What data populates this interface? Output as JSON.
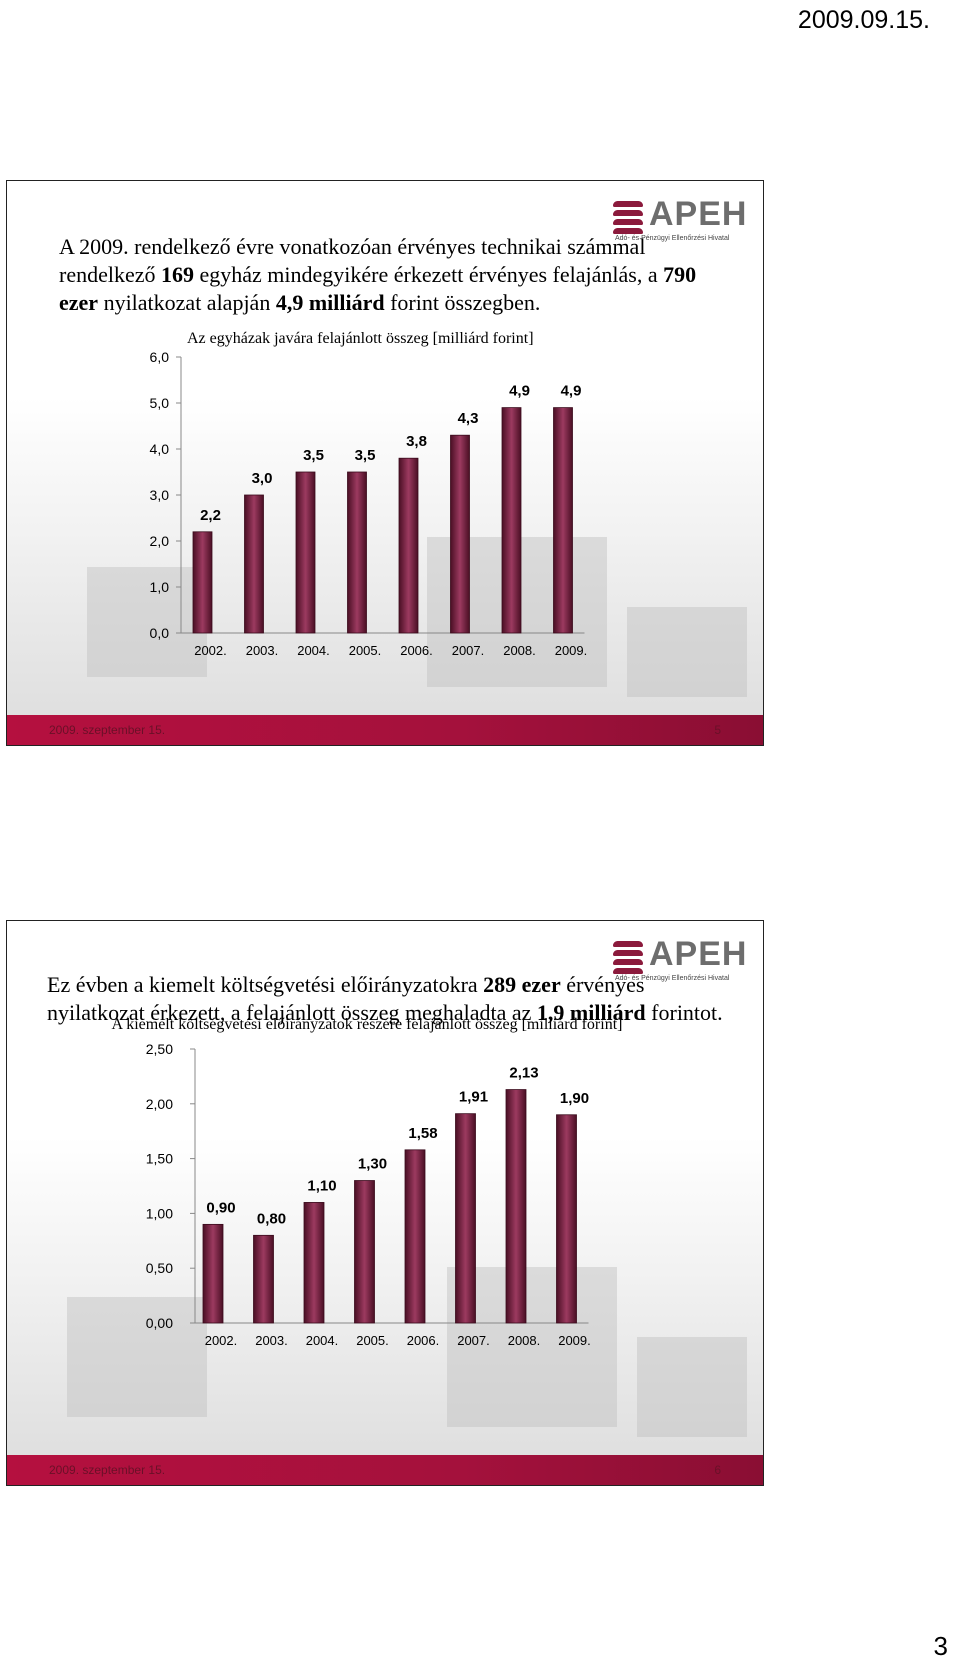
{
  "page": {
    "header_date": "2009.09.15.",
    "page_number": "3"
  },
  "slides": [
    {
      "text_parts": [
        {
          "t": "A 2009. rendelkező évre vonatkozóan érvényes technikai számmal rendelkező ",
          "b": false
        },
        {
          "t": "169",
          "b": true
        },
        {
          "t": " egyház mindegyikére érkezett érvényes felajánlás, a ",
          "b": false
        },
        {
          "t": "790 ezer",
          "b": true
        },
        {
          "t": " nyilatkozat alapján ",
          "b": false
        },
        {
          "t": "4,9 milliárd",
          "b": true
        },
        {
          "t": " forint összegben.",
          "b": false
        }
      ],
      "footer_date": "2009. szeptember 15.",
      "footer_num": "5"
    },
    {
      "text_parts": [
        {
          "t": "Ez évben a kiemelt költségvetési előirányzatokra ",
          "b": false
        },
        {
          "t": "289 ezer",
          "b": true
        },
        {
          "t": " érvényes nyilatkozat érkezett, a felajánlott összeg meghaladta az ",
          "b": false
        },
        {
          "t": "1,9 milliárd",
          "b": true
        },
        {
          "t": " forintot.",
          "b": false
        }
      ],
      "footer_date": "2009. szeptember 15.",
      "footer_num": "6"
    }
  ],
  "logo": {
    "text": "APEH",
    "subtitle": "Adó- és Pénzügyi Ellenőrzési Hivatal"
  },
  "colors": {
    "bar_dark": "#4a0f24",
    "bar_light": "#9c3a60",
    "footer": "#b5103f",
    "logo": "#8b1a3c"
  },
  "chart_data": [
    {
      "type": "bar",
      "title": "Az egyházak javára felajánlott összeg [milliárd forint]",
      "categories": [
        "2002.",
        "2003.",
        "2004.",
        "2005.",
        "2006.",
        "2007.",
        "2008.",
        "2009."
      ],
      "values": [
        2.2,
        3.0,
        3.5,
        3.5,
        3.8,
        4.3,
        4.9,
        4.9
      ],
      "value_labels": [
        "2,2",
        "3,0",
        "3,5",
        "3,5",
        "3,8",
        "4,3",
        "4,9",
        "4,9"
      ],
      "y_ticks": [
        "0,0",
        "1,0",
        "2,0",
        "3,0",
        "4,0",
        "5,0",
        "6,0"
      ],
      "ylim": [
        0,
        6
      ],
      "grid": false,
      "xlabel": "",
      "ylabel": ""
    },
    {
      "type": "bar",
      "title": "A kiemelt költségvetési előirányzatok részére felajánlott összeg [milliárd forint]",
      "categories": [
        "2002.",
        "2003.",
        "2004.",
        "2005.",
        "2006.",
        "2007.",
        "2008.",
        "2009."
      ],
      "values": [
        0.9,
        0.8,
        1.1,
        1.3,
        1.58,
        1.91,
        2.13,
        1.9
      ],
      "value_labels": [
        "0,90",
        "0,80",
        "1,10",
        "1,30",
        "1,58",
        "1,91",
        "2,13",
        "1,90"
      ],
      "y_ticks": [
        "0,00",
        "0,50",
        "1,00",
        "1,50",
        "2,00",
        "2,50"
      ],
      "ylim": [
        0,
        2.5
      ],
      "grid": false,
      "xlabel": "",
      "ylabel": ""
    }
  ]
}
